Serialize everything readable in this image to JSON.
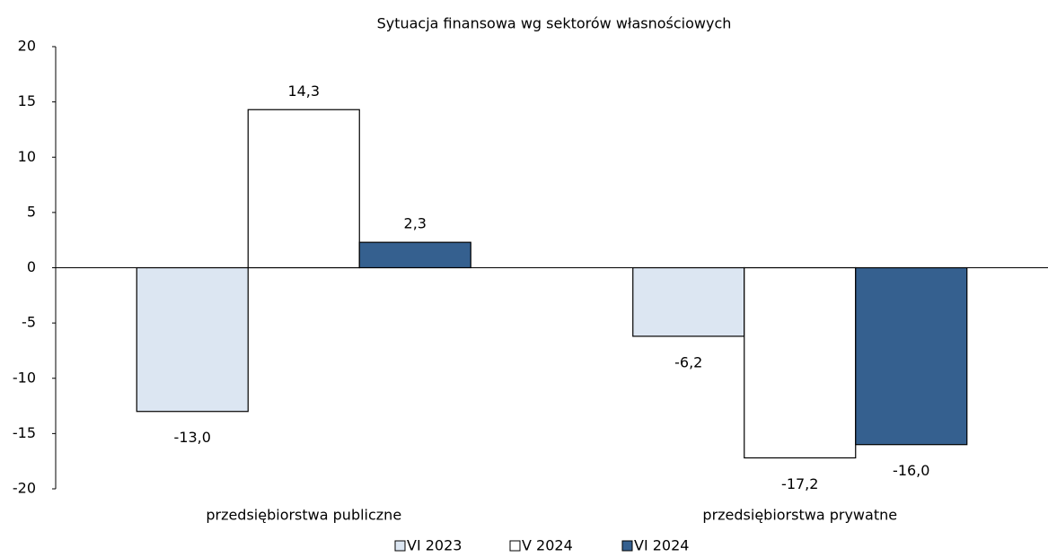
{
  "chart_data": {
    "type": "bar",
    "title": "Sytuacja finansowa wg sektorów własnościowych",
    "categories": [
      "przedsiębiorstwa publiczne",
      "przedsiębiorstwa prywatne"
    ],
    "series": [
      {
        "name": "VI 2023",
        "color": "#dce6f2",
        "values": [
          -13.0,
          -6.2
        ],
        "value_labels": [
          "-13,0",
          "-6,2"
        ]
      },
      {
        "name": "V 2024",
        "color": "#ffffff",
        "values": [
          14.3,
          -17.2
        ],
        "value_labels": [
          "14,3",
          "-17,2"
        ]
      },
      {
        "name": "VI 2024",
        "color": "#35608f",
        "values": [
          2.3,
          -16.0
        ],
        "value_labels": [
          "2,3",
          "-16,0"
        ]
      }
    ],
    "ylim": [
      -20,
      20
    ],
    "yticks": [
      -20,
      -15,
      -10,
      -5,
      0,
      5,
      10,
      15,
      20
    ],
    "legend": "bottom"
  }
}
